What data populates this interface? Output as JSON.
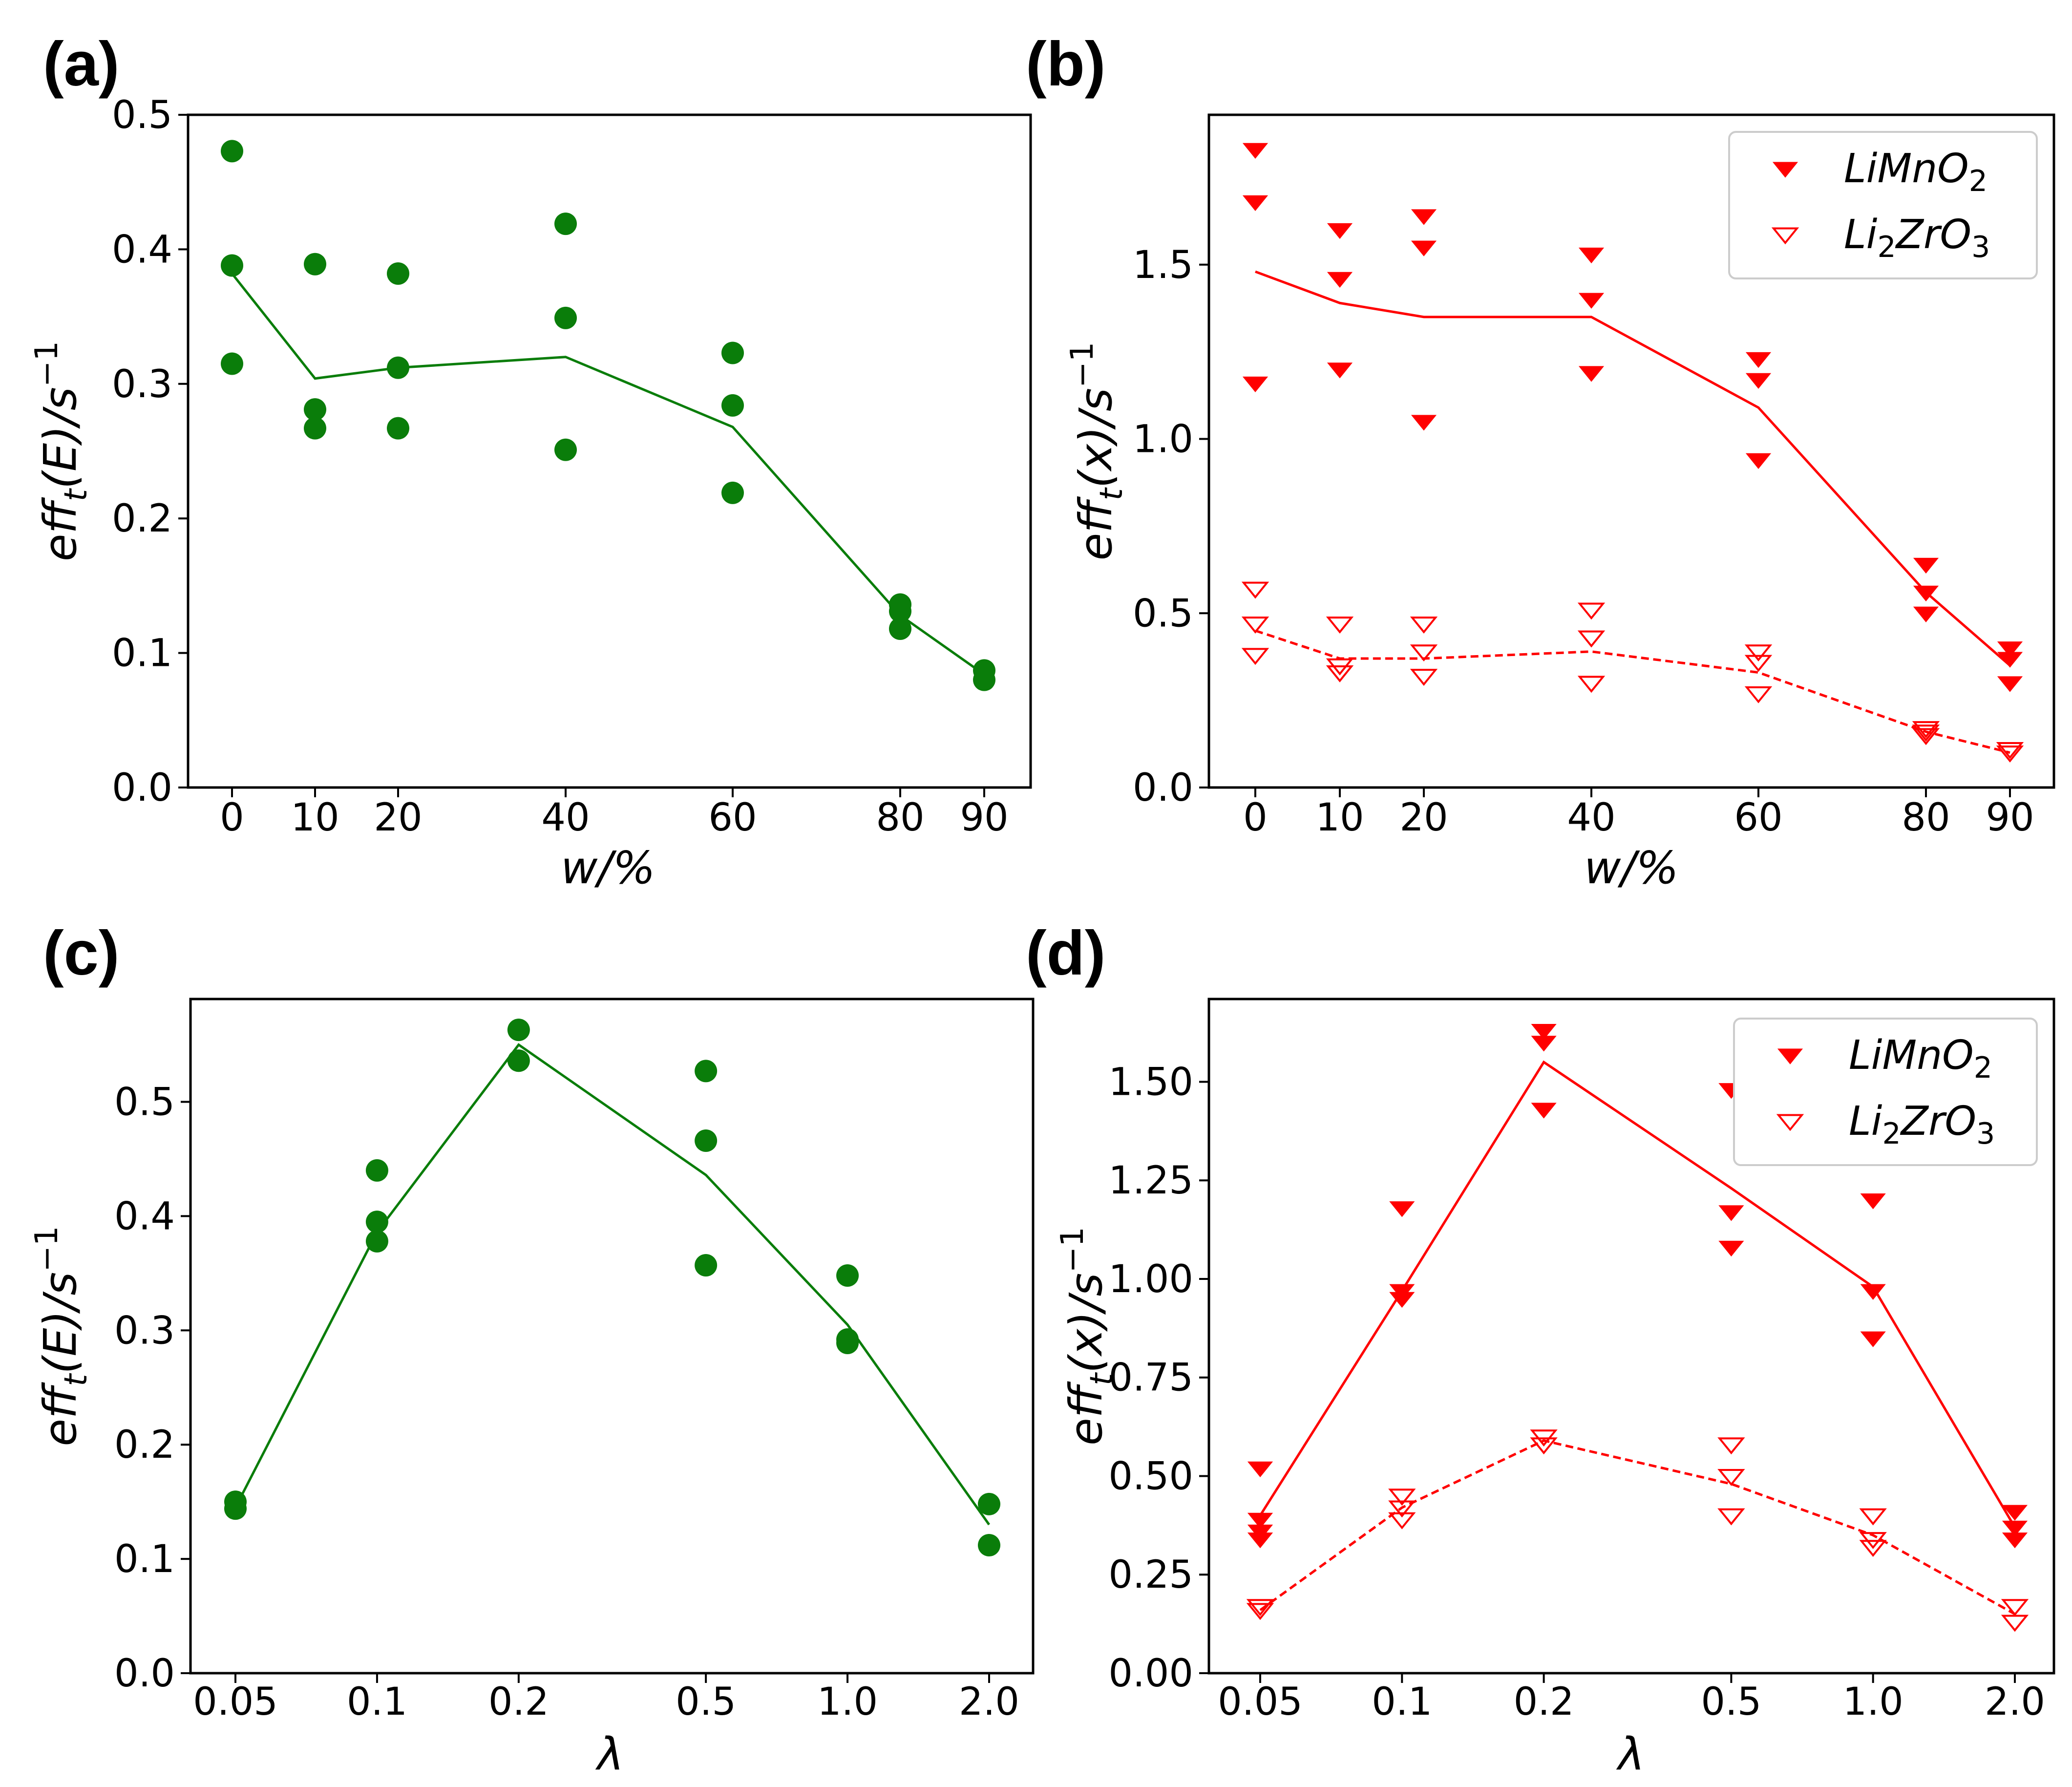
{
  "colors": {
    "green": "#0a7d0a",
    "red": "#ff0000"
  },
  "chart_data": [
    {
      "panel_label": "(a)",
      "type": "scatter",
      "x_scale": "categorical",
      "x_ticks": [
        "0",
        "10",
        "20",
        "40",
        "60",
        "80",
        "90"
      ],
      "y_ticks": [
        "0.0",
        "0.1",
        "0.2",
        "0.3",
        "0.4",
        "0.5"
      ],
      "ylim": [
        0,
        0.5
      ],
      "xlabel": "w/%",
      "ylabel": {
        "base": "eff",
        "sub": "t",
        "mid": "(E)/s",
        "sup": "−1"
      },
      "series": [
        {
          "marker": "circle",
          "color": "#0a7d0a",
          "points": [
            [
              0,
              0.473
            ],
            [
              0,
              0.388
            ],
            [
              0,
              0.315
            ],
            [
              10,
              0.389
            ],
            [
              10,
              0.281
            ],
            [
              10,
              0.267
            ],
            [
              20,
              0.382
            ],
            [
              20,
              0.312
            ],
            [
              20,
              0.267
            ],
            [
              40,
              0.419
            ],
            [
              40,
              0.349
            ],
            [
              40,
              0.251
            ],
            [
              60,
              0.323
            ],
            [
              60,
              0.284
            ],
            [
              60,
              0.219
            ],
            [
              80,
              0.136
            ],
            [
              80,
              0.131
            ],
            [
              80,
              0.118
            ],
            [
              90,
              0.087
            ],
            [
              90,
              0.08
            ]
          ],
          "mean_line": {
            "x": [
              0,
              10,
              20,
              40,
              60,
              80,
              90
            ],
            "y": [
              0.382,
              0.304,
              0.312,
              0.32,
              0.268,
              0.128,
              0.084
            ],
            "style": "solid"
          }
        }
      ]
    },
    {
      "panel_label": "(b)",
      "type": "scatter",
      "x_scale": "categorical",
      "x_ticks": [
        "0",
        "10",
        "20",
        "40",
        "60",
        "80",
        "90"
      ],
      "y_ticks": [
        "0.0",
        "0.5",
        "1.0",
        "1.5"
      ],
      "ylim": [
        0,
        1.93
      ],
      "xlabel": "w/%",
      "ylabel": {
        "base": "eff",
        "sub": "t",
        "mid": "(x)/s",
        "sup": "−1"
      },
      "legend": {
        "position": "top-right",
        "entries": [
          {
            "marker": "filled-triangle-down",
            "label_parts": [
              "LiMnO",
              "2",
              ""
            ]
          },
          {
            "marker": "open-triangle-down",
            "label_parts": [
              "Li",
              "2",
              "ZrO",
              "3"
            ]
          }
        ]
      },
      "series": [
        {
          "name": "LiMnO2",
          "marker": "filled-triangle-down",
          "color": "#ff0000",
          "points": [
            [
              0,
              1.83
            ],
            [
              0,
              1.68
            ],
            [
              0,
              1.16
            ],
            [
              10,
              1.6
            ],
            [
              10,
              1.46
            ],
            [
              10,
              1.2
            ],
            [
              20,
              1.64
            ],
            [
              20,
              1.55
            ],
            [
              20,
              1.05
            ],
            [
              40,
              1.53
            ],
            [
              40,
              1.4
            ],
            [
              40,
              1.19
            ],
            [
              60,
              1.23
            ],
            [
              60,
              1.17
            ],
            [
              60,
              0.94
            ],
            [
              80,
              0.64
            ],
            [
              80,
              0.56
            ],
            [
              80,
              0.5
            ],
            [
              90,
              0.4
            ],
            [
              90,
              0.37
            ],
            [
              90,
              0.3
            ]
          ],
          "mean_line": {
            "x": [
              0,
              10,
              20,
              40,
              60,
              80,
              90
            ],
            "y": [
              1.48,
              1.39,
              1.35,
              1.35,
              1.09,
              0.56,
              0.35
            ],
            "style": "solid"
          }
        },
        {
          "name": "Li2ZrO3",
          "marker": "open-triangle-down",
          "color": "#ff0000",
          "points": [
            [
              0,
              0.57
            ],
            [
              0,
              0.47
            ],
            [
              0,
              0.38
            ],
            [
              10,
              0.47
            ],
            [
              10,
              0.35
            ],
            [
              10,
              0.33
            ],
            [
              20,
              0.47
            ],
            [
              20,
              0.39
            ],
            [
              20,
              0.32
            ],
            [
              40,
              0.51
            ],
            [
              40,
              0.43
            ],
            [
              40,
              0.3
            ],
            [
              60,
              0.39
            ],
            [
              60,
              0.36
            ],
            [
              60,
              0.27
            ],
            [
              80,
              0.17
            ],
            [
              80,
              0.16
            ],
            [
              80,
              0.15
            ],
            [
              90,
              0.11
            ],
            [
              90,
              0.1
            ]
          ],
          "mean_line": {
            "x": [
              0,
              10,
              20,
              40,
              60,
              80,
              90
            ],
            "y": [
              0.45,
              0.37,
              0.37,
              0.39,
              0.33,
              0.16,
              0.1
            ],
            "style": "dashed"
          }
        }
      ]
    },
    {
      "panel_label": "(c)",
      "type": "scatter",
      "x_scale": "log",
      "x_ticks": [
        "0.05",
        "0.1",
        "0.2",
        "0.5",
        "1.0",
        "2.0"
      ],
      "y_ticks": [
        "0.0",
        "0.1",
        "0.2",
        "0.3",
        "0.4",
        "0.5"
      ],
      "ylim": [
        0,
        0.59
      ],
      "xlabel": "λ",
      "ylabel": {
        "base": "eff",
        "sub": "t",
        "mid": "(E)/s",
        "sup": "−1"
      },
      "series": [
        {
          "marker": "circle",
          "color": "#0a7d0a",
          "points": [
            [
              0.05,
              0.15
            ],
            [
              0.05,
              0.144
            ],
            [
              0.1,
              0.44
            ],
            [
              0.1,
              0.395
            ],
            [
              0.1,
              0.378
            ],
            [
              0.2,
              0.563
            ],
            [
              0.2,
              0.536
            ],
            [
              0.5,
              0.527
            ],
            [
              0.5,
              0.466
            ],
            [
              0.5,
              0.357
            ],
            [
              1.0,
              0.348
            ],
            [
              1.0,
              0.292
            ],
            [
              1.0,
              0.289
            ],
            [
              2.0,
              0.148
            ],
            [
              2.0,
              0.112
            ]
          ],
          "mean_line": {
            "x": [
              0.05,
              0.1,
              0.2,
              0.5,
              1.0,
              2.0
            ],
            "y": [
              0.145,
              0.386,
              0.55,
              0.436,
              0.305,
              0.13
            ],
            "style": "solid"
          }
        }
      ]
    },
    {
      "panel_label": "(d)",
      "type": "scatter",
      "x_scale": "log",
      "x_ticks": [
        "0.05",
        "0.1",
        "0.2",
        "0.5",
        "1.0",
        "2.0"
      ],
      "y_ticks": [
        "0.00",
        "0.25",
        "0.50",
        "0.75",
        "1.00",
        "1.25",
        "1.50"
      ],
      "ylim": [
        0,
        1.71
      ],
      "xlabel": "λ",
      "ylabel": {
        "base": "eff",
        "sub": "t",
        "mid": "(x)/s",
        "sup": "−1"
      },
      "legend": {
        "position": "top-right",
        "entries": [
          {
            "marker": "filled-triangle-down",
            "label_parts": [
              "LiMnO",
              "2",
              ""
            ]
          },
          {
            "marker": "open-triangle-down",
            "label_parts": [
              "Li",
              "2",
              "ZrO",
              "3"
            ]
          }
        ]
      },
      "series": [
        {
          "name": "LiMnO2",
          "marker": "filled-triangle-down",
          "color": "#ff0000",
          "points": [
            [
              0.05,
              0.52
            ],
            [
              0.05,
              0.39
            ],
            [
              0.05,
              0.36
            ],
            [
              0.05,
              0.34
            ],
            [
              0.1,
              1.18
            ],
            [
              0.1,
              0.97
            ],
            [
              0.1,
              0.95
            ],
            [
              0.2,
              1.63
            ],
            [
              0.2,
              1.6
            ],
            [
              0.2,
              1.43
            ],
            [
              0.5,
              1.48
            ],
            [
              0.5,
              1.17
            ],
            [
              0.5,
              1.08
            ],
            [
              1.0,
              1.2
            ],
            [
              1.0,
              0.97
            ],
            [
              1.0,
              0.85
            ],
            [
              2.0,
              0.41
            ],
            [
              2.0,
              0.37
            ],
            [
              2.0,
              0.34
            ]
          ],
          "mean_line": {
            "x": [
              0.05,
              0.1,
              0.2,
              0.5,
              1.0,
              2.0
            ],
            "y": [
              0.4,
              0.97,
              1.55,
              1.23,
              0.98,
              0.37
            ],
            "style": "solid"
          }
        },
        {
          "name": "Li2ZrO3",
          "marker": "open-triangle-down",
          "color": "#ff0000",
          "points": [
            [
              0.05,
              0.17
            ],
            [
              0.05,
              0.16
            ],
            [
              0.1,
              0.45
            ],
            [
              0.1,
              0.42
            ],
            [
              0.1,
              0.39
            ],
            [
              0.2,
              0.6
            ],
            [
              0.2,
              0.58
            ],
            [
              0.5,
              0.58
            ],
            [
              0.5,
              0.5
            ],
            [
              0.5,
              0.4
            ],
            [
              1.0,
              0.4
            ],
            [
              1.0,
              0.34
            ],
            [
              1.0,
              0.32
            ],
            [
              2.0,
              0.17
            ],
            [
              2.0,
              0.13
            ]
          ],
          "mean_line": {
            "x": [
              0.05,
              0.1,
              0.2,
              0.5,
              1.0,
              2.0
            ],
            "y": [
              0.16,
              0.42,
              0.59,
              0.48,
              0.35,
              0.15
            ],
            "style": "dashed"
          }
        }
      ]
    }
  ]
}
